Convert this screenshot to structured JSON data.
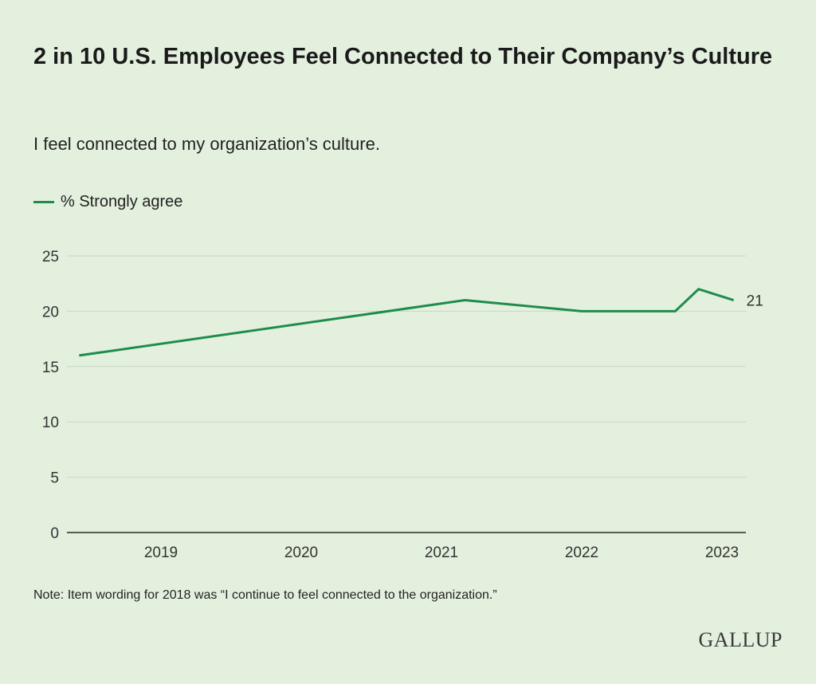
{
  "chart_data": {
    "type": "line",
    "title": "2 in 10 U.S. Employees Feel Connected to Their Company’s Culture",
    "subtitle": "I feel connected to my organization’s culture.",
    "series": [
      {
        "name": "% Strongly agree",
        "color": "#1f8c4c",
        "points": [
          {
            "x": "2018-06",
            "y": 16
          },
          {
            "x": "2021-03",
            "y": 21
          },
          {
            "x": "2022-01",
            "y": 20
          },
          {
            "x": "2022-09",
            "y": 20
          },
          {
            "x": "2022-11",
            "y": 22
          },
          {
            "x": "2023-02",
            "y": 21
          }
        ]
      }
    ],
    "end_label": "21",
    "xticks": [
      "2019",
      "2020",
      "2021",
      "2022",
      "2023"
    ],
    "yticks": [
      "0",
      "5",
      "10",
      "15",
      "20",
      "25"
    ],
    "ylim": [
      0,
      25
    ],
    "grid": true,
    "legend_position": "top-left",
    "note": "Note: Item wording for 2018 was “I continue to feel connected to the organization.”"
  },
  "branding": {
    "logo_text": "GALLUP"
  }
}
